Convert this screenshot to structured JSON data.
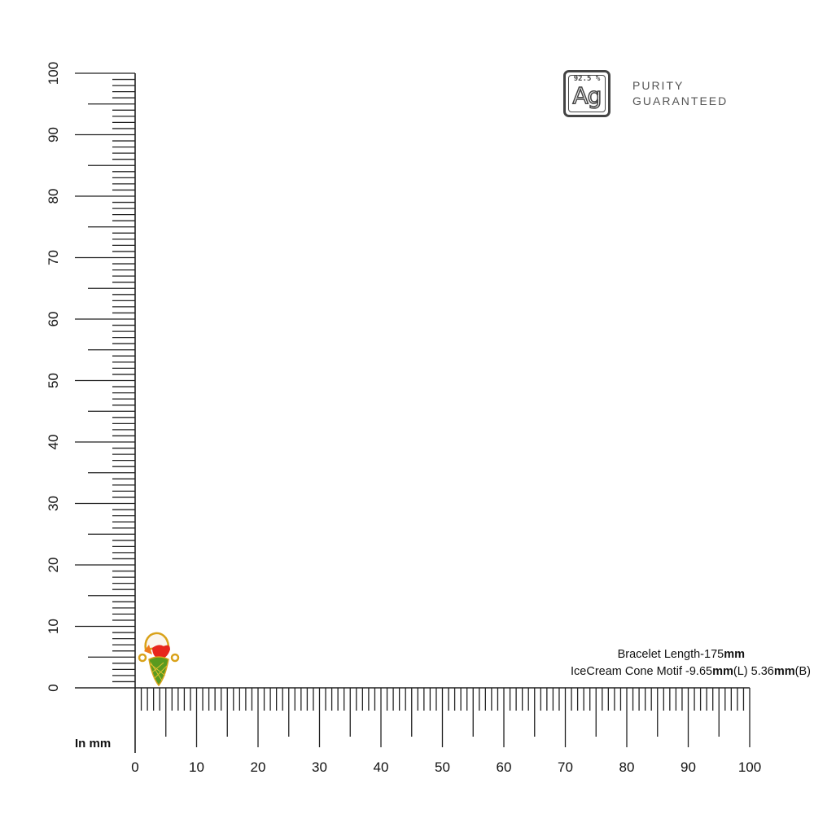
{
  "badge": {
    "purity": "92.5 %",
    "symbol": "Ag",
    "line1": "PURITY",
    "line2": "GUARANTEED"
  },
  "info": {
    "line1": {
      "text": "Bracelet Length-175",
      "unit": "mm"
    },
    "line2": {
      "text": "IceCream Cone  Motif -9.65",
      "unit1": "mm",
      "mid": "(L) 5.36",
      "unit2": "mm",
      "end": "(B)"
    }
  },
  "ruler": {
    "unit_label": "In mm",
    "min": 0,
    "max": 100,
    "label_step": 10,
    "x_labels": [
      "0",
      "10",
      "20",
      "30",
      "40",
      "50",
      "60",
      "70",
      "80",
      "90",
      "100"
    ],
    "y_labels": [
      "0",
      "10",
      "20",
      "30",
      "40",
      "50",
      "60",
      "70",
      "80",
      "90",
      "100"
    ]
  },
  "product": {
    "name": "ice-cream-cone-motif",
    "colors": {
      "gold": "#d9a21a",
      "cream": "#fbf6ee",
      "red": "#e8261c",
      "orange": "#f07b1d",
      "green": "#5a9a1f"
    }
  }
}
